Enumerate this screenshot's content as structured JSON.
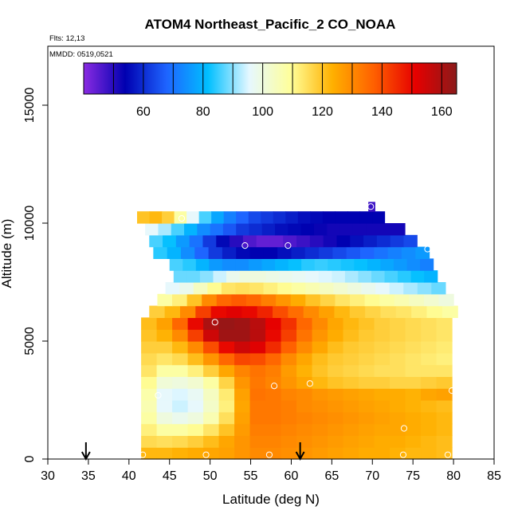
{
  "chart_data": {
    "type": "heatmap",
    "title": "ATOM4 Northeast_Pacific_2 CO_NOAA",
    "flights_label": "Flts: 12,13",
    "date_label": "MMDD: 0519,0521",
    "xlabel": "Latitude (deg N)",
    "ylabel": "Altitude (m)",
    "xlim": [
      30,
      85
    ],
    "ylim": [
      0,
      17500
    ],
    "x_ticks": [
      "30",
      "35",
      "40",
      "45",
      "50",
      "55",
      "60",
      "65",
      "70",
      "75",
      "80",
      "85"
    ],
    "y_ticks": [
      "0",
      "5000",
      "10000",
      "15000"
    ],
    "colorbar": {
      "range": [
        40,
        165
      ],
      "ticks": [
        "60",
        "80",
        "100",
        "120",
        "140",
        "160"
      ],
      "colors": [
        "#8a2be2",
        "#0000b0",
        "#1e64ff",
        "#00bfff",
        "#e6f8ff",
        "#ffff99",
        "#ffb000",
        "#ff6000",
        "#e60000",
        "#8b1a1a"
      ]
    },
    "field_rows": [
      {
        "alt_bottom": 0,
        "alt_top": 500,
        "lat_start": 41.5,
        "lat_end": 79.8,
        "values": [
          122,
          122,
          123,
          124,
          125,
          126,
          128,
          130,
          130,
          129,
          128,
          127,
          126,
          125,
          124,
          124,
          123,
          122,
          122,
          121
        ]
      },
      {
        "alt_bottom": 500,
        "alt_top": 1000,
        "lat_start": 41.5,
        "lat_end": 79.8,
        "values": [
          116,
          115,
          116,
          118,
          121,
          125,
          128,
          131,
          131,
          130,
          129,
          128,
          127,
          126,
          125,
          124,
          124,
          123,
          122,
          121
        ]
      },
      {
        "alt_bottom": 1000,
        "alt_top": 1500,
        "lat_start": 41.5,
        "lat_end": 79.8,
        "values": [
          112,
          108,
          108,
          110,
          114,
          120,
          127,
          132,
          132,
          131,
          130,
          129,
          128,
          127,
          126,
          125,
          125,
          124,
          123,
          122
        ]
      },
      {
        "alt_bottom": 1500,
        "alt_top": 2000,
        "lat_start": 41.5,
        "lat_end": 79.8,
        "values": [
          108,
          100,
          98,
          100,
          106,
          115,
          126,
          133,
          133,
          132,
          131,
          130,
          129,
          128,
          127,
          126,
          125,
          124,
          123,
          122
        ]
      },
      {
        "alt_bottom": 2000,
        "alt_top": 2500,
        "lat_start": 41.5,
        "lat_end": 79.8,
        "values": [
          106,
          96,
          94,
          96,
          103,
          112,
          125,
          133,
          133,
          132,
          130,
          129,
          128,
          127,
          126,
          125,
          124,
          123,
          122,
          121
        ]
      },
      {
        "alt_bottom": 2500,
        "alt_top": 3000,
        "lat_start": 41.5,
        "lat_end": 79.8,
        "values": [
          107,
          96,
          95,
          97,
          104,
          113,
          126,
          134,
          133,
          131,
          130,
          128,
          127,
          126,
          125,
          124,
          124,
          123,
          125,
          126
        ]
      },
      {
        "alt_bottom": 3000,
        "alt_top": 3500,
        "lat_start": 41.5,
        "lat_end": 79.8,
        "values": [
          110,
          101,
          100,
          102,
          108,
          117,
          128,
          133,
          131,
          128,
          125,
          122,
          120,
          119,
          118,
          118,
          117,
          117,
          118,
          119
        ]
      },
      {
        "alt_bottom": 3500,
        "alt_top": 4000,
        "lat_start": 41.5,
        "lat_end": 79.8,
        "values": [
          114,
          108,
          108,
          112,
          118,
          125,
          131,
          134,
          132,
          127,
          123,
          120,
          118,
          117,
          116,
          115,
          115,
          114,
          114,
          114
        ]
      },
      {
        "alt_bottom": 4000,
        "alt_top": 4500,
        "lat_start": 41.5,
        "lat_end": 79.8,
        "values": [
          116,
          114,
          116,
          121,
          128,
          136,
          141,
          140,
          136,
          130,
          125,
          121,
          119,
          118,
          117,
          116,
          115,
          114,
          113,
          112
        ]
      },
      {
        "alt_bottom": 4500,
        "alt_top": 5000,
        "lat_start": 41.5,
        "lat_end": 79.8,
        "values": [
          118,
          118,
          122,
          130,
          140,
          150,
          155,
          152,
          145,
          137,
          130,
          125,
          121,
          119,
          118,
          117,
          116,
          115,
          114,
          113
        ]
      },
      {
        "alt_bottom": 5000,
        "alt_top": 5500,
        "lat_start": 41.5,
        "lat_end": 79.8,
        "values": [
          120,
          123,
          130,
          142,
          155,
          162,
          162,
          158,
          150,
          142,
          134,
          128,
          124,
          121,
          119,
          118,
          117,
          116,
          115,
          114
        ]
      },
      {
        "alt_bottom": 5500,
        "alt_top": 6000,
        "lat_start": 41.5,
        "lat_end": 79.8,
        "values": [
          121,
          126,
          136,
          150,
          160,
          163,
          162,
          158,
          151,
          144,
          136,
          130,
          125,
          122,
          120,
          118,
          117,
          116,
          115,
          114
        ]
      },
      {
        "alt_bottom": 6000,
        "alt_top": 6500,
        "lat_start": 42.5,
        "lat_end": 80.5,
        "values": [
          118,
          122,
          130,
          142,
          150,
          152,
          150,
          146,
          140,
          135,
          130,
          126,
          122,
          119,
          117,
          115,
          114,
          112,
          110,
          108
        ]
      },
      {
        "alt_bottom": 6500,
        "alt_top": 7000,
        "lat_start": 43.5,
        "lat_end": 80.0,
        "values": [
          108,
          112,
          120,
          130,
          136,
          138,
          136,
          132,
          128,
          124,
          120,
          117,
          114,
          112,
          110,
          108,
          106,
          104,
          102,
          100
        ]
      },
      {
        "alt_bottom": 7000,
        "alt_top": 7500,
        "lat_start": 44.5,
        "lat_end": 79.0,
        "values": [
          96,
          98,
          104,
          110,
          114,
          115,
          114,
          112,
          110,
          108,
          106,
          104,
          102,
          100,
          98,
          96,
          94,
          92,
          90,
          88
        ]
      },
      {
        "alt_bottom": 7500,
        "alt_top": 8000,
        "lat_start": 45.5,
        "lat_end": 78.0,
        "values": [
          88,
          88,
          90,
          94,
          98,
          100,
          100,
          99,
          98,
          97,
          96,
          95,
          94,
          92,
          90,
          88,
          86,
          84,
          82,
          80
        ]
      },
      {
        "alt_bottom": 8000,
        "alt_top": 8500,
        "lat_start": 45.0,
        "lat_end": 77.5,
        "values": [
          86,
          84,
          80,
          76,
          74,
          74,
          76,
          78,
          80,
          82,
          84,
          85,
          84,
          83,
          82,
          80,
          78,
          76,
          74,
          72
        ]
      },
      {
        "alt_bottom": 8500,
        "alt_top": 9000,
        "lat_start": 43.0,
        "lat_end": 77.0,
        "values": [
          84,
          80,
          74,
          68,
          62,
          58,
          55,
          54,
          54,
          56,
          58,
          60,
          62,
          64,
          66,
          68,
          70,
          72,
          74,
          76
        ]
      },
      {
        "alt_bottom": 9000,
        "alt_top": 9500,
        "lat_start": 42.5,
        "lat_end": 75.5,
        "values": [
          86,
          82,
          76,
          70,
          62,
          55,
          50,
          46,
          44,
          44,
          46,
          48,
          50,
          52,
          54,
          56,
          58,
          60,
          62,
          64
        ]
      },
      {
        "alt_bottom": 9500,
        "alt_top": 10000,
        "lat_start": 42.0,
        "lat_end": 74.0,
        "values": [
          96,
          92,
          86,
          80,
          74,
          70,
          66,
          62,
          60,
          58,
          56,
          55,
          54,
          53,
          52,
          52,
          52,
          52,
          52,
          52
        ]
      },
      {
        "alt_bottom": 10000,
        "alt_top": 10500,
        "lat_start": 41.0,
        "lat_end": 71.5,
        "values": [
          120,
          122,
          118,
          108,
          96,
          86,
          78,
          72,
          68,
          64,
          62,
          60,
          58,
          56,
          55,
          54,
          54,
          54,
          54,
          54
        ]
      },
      {
        "alt_bottom": 10500,
        "alt_top": 10900,
        "lat_start": 69.5,
        "lat_end": 70.3,
        "values": [
          48
        ]
      }
    ],
    "sample_points": [
      {
        "lat": 46.5,
        "alt": 10200
      },
      {
        "lat": 54.3,
        "alt": 9050
      },
      {
        "lat": 59.6,
        "alt": 9050
      },
      {
        "lat": 69.8,
        "alt": 10700
      },
      {
        "lat": 76.8,
        "alt": 8900
      },
      {
        "lat": 50.6,
        "alt": 5800
      },
      {
        "lat": 43.6,
        "alt": 2700
      },
      {
        "lat": 57.9,
        "alt": 3100
      },
      {
        "lat": 62.3,
        "alt": 3200
      },
      {
        "lat": 73.9,
        "alt": 1300
      },
      {
        "lat": 79.8,
        "alt": 2900
      },
      {
        "lat": 41.7,
        "alt": 180
      },
      {
        "lat": 49.5,
        "alt": 180
      },
      {
        "lat": 57.3,
        "alt": 180
      },
      {
        "lat": 73.8,
        "alt": 180
      },
      {
        "lat": 79.3,
        "alt": 180
      }
    ],
    "arrows": [
      {
        "lat": 34.7
      },
      {
        "lat": 61.1
      }
    ]
  }
}
